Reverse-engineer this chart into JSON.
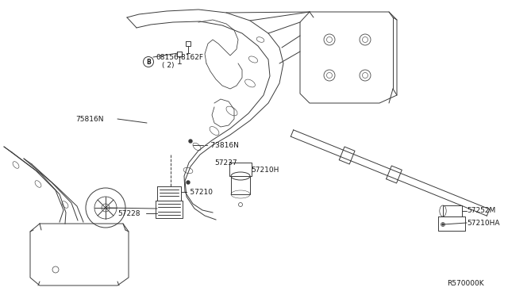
{
  "bg_color": "#ffffff",
  "line_color": "#3a3a3a",
  "text_color": "#1a1a1a",
  "part_number_ref": "R570000K",
  "font_size_labels": 6.5,
  "font_size_ref": 6.5,
  "labels": {
    "B_label": "B",
    "bolt_label_1": "08156-8162F",
    "bolt_label_2": "( 2)",
    "part_75816N_left": "75816N",
    "part_75816N_right": "73816N",
    "part_57210": "57210",
    "part_57228": "57228",
    "part_57237": "57237",
    "part_57210H": "57210H",
    "part_57252M": "57252M",
    "part_57210HA": "57210HA"
  }
}
